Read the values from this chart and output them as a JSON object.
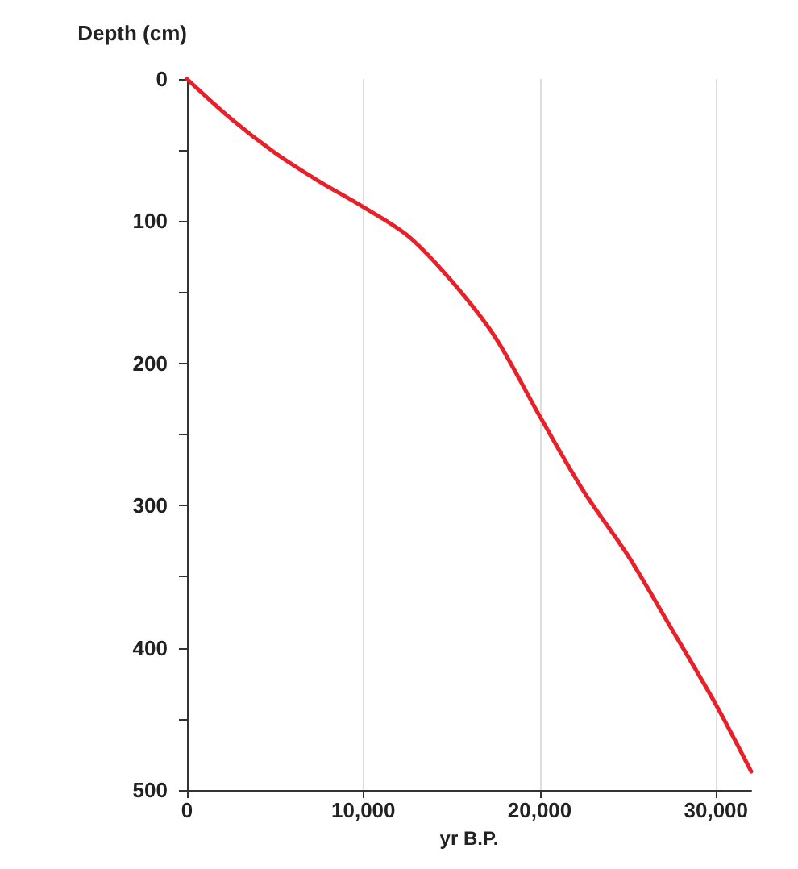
{
  "chart_data": {
    "type": "line",
    "xlabel": "yr B.P.",
    "ylabel": "Depth (cm)",
    "x": [
      0,
      2500,
      5000,
      7500,
      10000,
      12500,
      15000,
      17500,
      20000,
      22500,
      25000,
      27500,
      30000,
      32000
    ],
    "series": [
      {
        "color": "#e8202a",
        "values": [
          0,
          28,
          52,
          72,
          90,
          110,
          142,
          182,
          237,
          290,
          335,
          387,
          440,
          487
        ]
      }
    ],
    "xlim": [
      0,
      32000
    ],
    "xticks": [
      {
        "value": 0,
        "label": "0"
      },
      {
        "value": 10000,
        "label": "10,000"
      },
      {
        "value": 20000,
        "label": "20,000"
      },
      {
        "value": 30000,
        "label": "30,000"
      }
    ],
    "ylim": [
      500,
      0
    ],
    "yticks": [
      0,
      {
        "value": 50,
        "label": null
      },
      100,
      {
        "value": 150,
        "label": null
      },
      200,
      {
        "value": 250,
        "label": null
      },
      300,
      {
        "value": 350,
        "label": null
      },
      400,
      {
        "value": 450,
        "label": null
      },
      500
    ],
    "grid": "x",
    "marker": "none",
    "line_style": "solid"
  }
}
